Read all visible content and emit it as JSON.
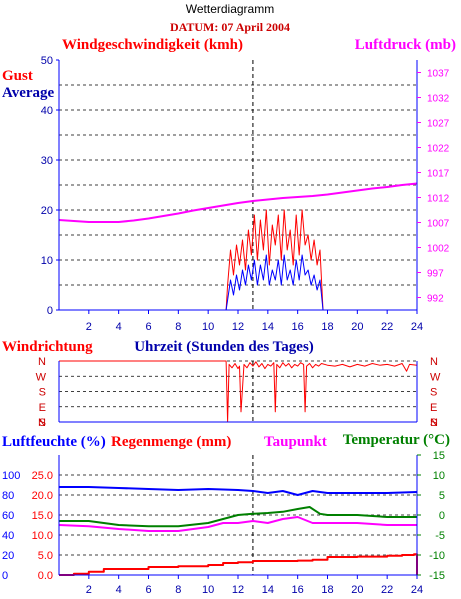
{
  "header": {
    "title": "Wetterdiagramm",
    "date": "DATUM: 07 April 2004"
  },
  "colors": {
    "red": "#ff0000",
    "blue": "#0000ff",
    "magenta": "#ff00ff",
    "green": "#008000",
    "darkred": "#cc0000",
    "darkblue": "#0000aa"
  },
  "chart_data": [
    {
      "type": "line",
      "title": "Windgeschwindigkeit (kmh)",
      "legend": [
        "Gust",
        "Average"
      ],
      "right_title": "Luftdruck (mb)",
      "xlabel": "Uhrzeit (Stunden des Tages)",
      "xlim": [
        0,
        24
      ],
      "x_ticks": [
        "2",
        "4",
        "6",
        "8",
        "10",
        "12",
        "14",
        "16",
        "18",
        "20",
        "22",
        "24"
      ],
      "ylim": [
        0,
        50
      ],
      "y_ticks": [
        "0",
        "10",
        "20",
        "30",
        "40",
        "50"
      ],
      "y2lim": [
        989.5,
        1039.5
      ],
      "y2_ticks": [
        "992",
        "997",
        "1002",
        "1007",
        "1012",
        "1017",
        "1022",
        "1027",
        "1032",
        "1037"
      ],
      "series": [
        {
          "name": "Gust",
          "color": "#ff0000",
          "x": [
            11.2,
            11.3,
            11.5,
            11.7,
            11.9,
            12.1,
            12.3,
            12.5,
            12.7,
            12.9,
            13.1,
            13.3,
            13.5,
            13.7,
            13.9,
            14.1,
            14.3,
            14.5,
            14.7,
            14.9,
            15.1,
            15.3,
            15.5,
            15.7,
            15.9,
            16.1,
            16.3,
            16.5,
            16.7,
            16.9,
            17.1,
            17.3,
            17.5,
            17.6,
            17.7
          ],
          "values": [
            0,
            5,
            12,
            7,
            13,
            9,
            14,
            8,
            16,
            11,
            19,
            10,
            18,
            12,
            20,
            9,
            17,
            13,
            19,
            10,
            20,
            12,
            16,
            9,
            19,
            11,
            20,
            13,
            15,
            10,
            14,
            9,
            12,
            6,
            0
          ]
        },
        {
          "name": "Average",
          "color": "#0000ff",
          "x": [
            11.2,
            11.3,
            11.5,
            11.7,
            11.9,
            12.1,
            12.3,
            12.5,
            12.7,
            12.9,
            13.1,
            13.3,
            13.5,
            13.7,
            13.9,
            14.1,
            14.3,
            14.5,
            14.7,
            14.9,
            15.1,
            15.3,
            15.5,
            15.7,
            15.9,
            16.1,
            16.3,
            16.5,
            16.7,
            16.9,
            17.1,
            17.3,
            17.5,
            17.6,
            17.7
          ],
          "values": [
            0,
            2,
            6,
            3,
            7,
            4,
            8,
            5,
            9,
            6,
            10,
            5,
            9,
            6,
            11,
            5,
            8,
            6,
            10,
            5,
            11,
            6,
            8,
            5,
            10,
            6,
            11,
            7,
            8,
            5,
            7,
            4,
            6,
            3,
            0
          ]
        },
        {
          "name": "Luftdruck",
          "color": "#ff00ff",
          "axis": "right",
          "x": [
            0,
            1,
            2,
            3,
            4,
            5,
            6,
            7,
            8,
            9,
            10,
            11,
            12,
            13,
            14,
            15,
            16,
            17,
            18,
            19,
            20,
            21,
            22,
            23,
            24
          ],
          "values": [
            1007.5,
            1007.3,
            1007.1,
            1007.1,
            1007.1,
            1007.4,
            1007.8,
            1008.3,
            1008.8,
            1009.4,
            1009.9,
            1010.4,
            1010.9,
            1011.3,
            1011.6,
            1011.9,
            1012.1,
            1012.3,
            1012.6,
            1013.0,
            1013.4,
            1013.8,
            1014.1,
            1014.5,
            1014.8
          ]
        }
      ]
    },
    {
      "type": "line",
      "title": "Windrichtung",
      "xlabel": "Uhrzeit (Stunden des Tages)",
      "xlim": [
        0,
        24
      ],
      "y_ticks": [
        "N",
        "S",
        "E",
        "S",
        "W",
        "N"
      ],
      "series": [
        {
          "name": "Windrichtung",
          "color": "#ff0000",
          "x": [
            0,
            11.2,
            11.3,
            11.4,
            11.6,
            11.8,
            12.0,
            12.1,
            12.2,
            12.4,
            12.6,
            12.8,
            13.0,
            13.2,
            13.4,
            13.6,
            13.8,
            14.0,
            14.2,
            14.4,
            14.5,
            14.6,
            14.8,
            15.0,
            15.2,
            15.4,
            15.6,
            15.8,
            16.0,
            16.2,
            16.4,
            16.5,
            16.6,
            16.8,
            17.0,
            17.2,
            17.4,
            17.6,
            18.0,
            18.5,
            19.0,
            19.5,
            20.0,
            20.5,
            21.0,
            21.5,
            22.0,
            22.5,
            23.0,
            23.3,
            23.5,
            24.0
          ],
          "values": [
            360,
            360,
            0,
            340,
            320,
            345,
            315,
            330,
            60,
            340,
            320,
            350,
            330,
            355,
            325,
            345,
            315,
            340,
            330,
            350,
            60,
            340,
            320,
            350,
            330,
            345,
            320,
            340,
            330,
            350,
            340,
            60,
            330,
            345,
            320,
            340,
            330,
            345,
            335,
            330,
            340,
            325,
            340,
            330,
            345,
            335,
            340,
            330,
            345,
            300,
            340,
            335
          ]
        }
      ]
    },
    {
      "type": "line",
      "legend": [
        "Luftfeuchte (%)",
        "Regenmenge (mm)",
        "Taupunkt",
        "Temperatur (°C)"
      ],
      "xlim": [
        0,
        24
      ],
      "x_ticks": [
        "2",
        "4",
        "6",
        "8",
        "10",
        "12",
        "14",
        "16",
        "18",
        "20",
        "22",
        "24"
      ],
      "y_left1_ticks": [
        "0",
        "20",
        "40",
        "60",
        "80",
        "100"
      ],
      "y_left2_ticks": [
        "0.0",
        "5.0",
        "10.0",
        "15.0",
        "20.0",
        "25.0"
      ],
      "y_right_ticks": [
        "15",
        "10",
        "5",
        "0",
        "-5",
        "-10",
        "-15"
      ],
      "series": [
        {
          "name": "Luftfeuchte",
          "color": "#0000ff",
          "unit": "%",
          "x": [
            0,
            2,
            4,
            6,
            8,
            10,
            12,
            13,
            14,
            15,
            16,
            17,
            18,
            20,
            22,
            24
          ],
          "values": [
            88,
            88,
            87,
            86,
            85,
            86,
            85,
            84,
            82,
            84,
            80,
            84,
            82,
            82,
            82,
            83
          ]
        },
        {
          "name": "Regenmenge",
          "color": "#ff0000",
          "unit": "mm",
          "x": [
            0,
            0.5,
            1,
            2,
            3,
            6,
            8,
            10,
            11,
            12,
            13,
            16,
            17,
            18,
            20,
            22,
            23,
            23.8,
            24
          ],
          "values": [
            0,
            0,
            0.3,
            0.8,
            1.5,
            2.0,
            2.2,
            2.5,
            3.0,
            3.2,
            3.5,
            3.6,
            3.8,
            4.5,
            4.6,
            4.8,
            5.0,
            5.2,
            0
          ]
        },
        {
          "name": "Taupunkt",
          "color": "#ff00ff",
          "unit": "°C",
          "x": [
            0,
            2,
            4,
            6,
            8,
            10,
            11,
            12,
            13,
            14,
            15,
            16,
            17,
            18,
            20,
            22,
            24
          ],
          "values": [
            -2.5,
            -2.8,
            -3.5,
            -4.0,
            -4.0,
            -3.0,
            -2.0,
            -2.0,
            -1.5,
            -2.0,
            -1.0,
            -0.5,
            -2.0,
            -2.0,
            -2.0,
            -2.5,
            -2.5
          ]
        },
        {
          "name": "Temperatur",
          "color": "#008000",
          "unit": "°C",
          "x": [
            0,
            2,
            4,
            6,
            8,
            10,
            11,
            12,
            13,
            14,
            15,
            16,
            16.8,
            17.5,
            18,
            20,
            22,
            24
          ],
          "values": [
            -1.5,
            -1.5,
            -2.5,
            -2.8,
            -2.8,
            -2.0,
            -1.0,
            0.0,
            0.3,
            0.5,
            0.8,
            1.5,
            2.0,
            0.3,
            0.0,
            0.0,
            -0.5,
            -0.5
          ]
        }
      ]
    }
  ]
}
